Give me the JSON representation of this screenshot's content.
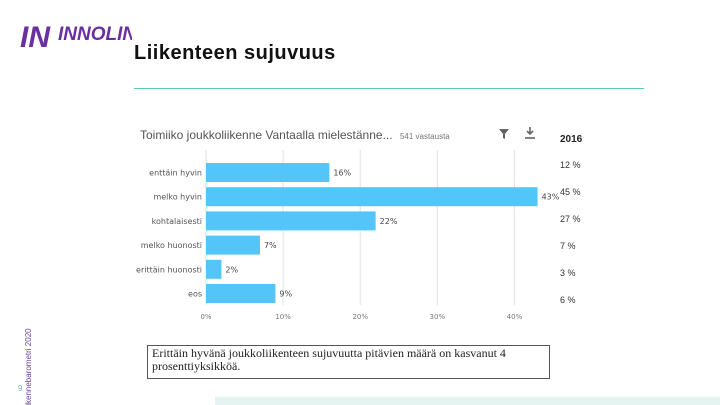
{
  "logo": {
    "text": "INNOLINK"
  },
  "slide": {
    "title": "Liikenteen sujuvuus",
    "side_label": "Liikennebarometri 2020",
    "page_number": "9",
    "note": "Erittäin hyvänä joukkoliikenteen sujuvuutta pitävien määrä on kasvanut 4 prosenttiyksikköä."
  },
  "colors": {
    "bar": "#54c5f8",
    "accent": "#5cc9b4",
    "logo": "#6a2fa0"
  },
  "icons": {
    "filter": "filter-icon",
    "download": "download-icon"
  },
  "chart_data": {
    "type": "bar",
    "orientation": "horizontal",
    "title": "Toimiiko joukkoliikenne Vantaalla mielestänne...",
    "subtitle": "541 vastausta",
    "categories": [
      "erittäin hyvin",
      "melko hyvin",
      "kohtalaisesti",
      "melko huonosti",
      "erittäin huonosti",
      "eos"
    ],
    "category_labels_shown": [
      "enttäin hyvin",
      "melko hyvin",
      "kohtalaisesti",
      "melko huonosti",
      "erittäin huonosti",
      "eos"
    ],
    "values": [
      16,
      43,
      22,
      7,
      2,
      9
    ],
    "value_labels": [
      "16%",
      "43%",
      "22%",
      "7%",
      "2%",
      "9%"
    ],
    "xlim": [
      0,
      45
    ],
    "xticks": [
      0,
      10,
      20,
      30,
      40
    ],
    "xtick_labels": [
      "0%",
      "10%",
      "20%",
      "30%",
      "40%"
    ],
    "grid": true,
    "comparison": {
      "label": "2016",
      "values": [
        12,
        45,
        27,
        7,
        3,
        6
      ],
      "value_labels": [
        "12 %",
        "45 %",
        "27 %",
        "7 %",
        "3 %",
        "6 %"
      ]
    }
  }
}
